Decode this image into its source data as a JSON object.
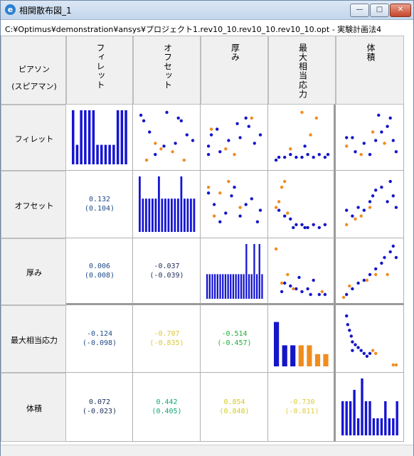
{
  "window": {
    "title": "相関散布図_1",
    "icon": "optimus-app-icon"
  },
  "controls": {
    "minimize": "—",
    "maximize": "□",
    "close": "✕"
  },
  "path": "C:¥Optimus¥demonstration¥ansys¥プロジェクト1.rev10_10.rev10_10.rev10_10.opt - 実験計画法4",
  "corner": {
    "line1": "ピアソン",
    "line2": "(スピアマン)"
  },
  "variables": [
    "フィレット",
    "オフセット",
    "厚み",
    "最大相当応力",
    "体積"
  ],
  "colors": {
    "feasible": "#1515c8",
    "infeasible": "#f08c1e",
    "bar": "#1515d2"
  },
  "correlations": [
    {
      "row": 1,
      "col": 0,
      "pearson": "0.132",
      "spearman": "(0.104)",
      "color": "#1f4a86"
    },
    {
      "row": 2,
      "col": 0,
      "pearson": "0.006",
      "spearman": "(0.008)",
      "color": "#1f4a86"
    },
    {
      "row": 2,
      "col": 1,
      "pearson": "-0.037",
      "spearman": "(-0.039)",
      "color": "#1f2f5a"
    },
    {
      "row": 3,
      "col": 0,
      "pearson": "-0.124",
      "spearman": "(-0.098)",
      "color": "#1f4a86"
    },
    {
      "row": 3,
      "col": 1,
      "pearson": "-0.707",
      "spearman": "(-0.835)",
      "color": "#d9c93e"
    },
    {
      "row": 3,
      "col": 2,
      "pearson": "-0.514",
      "spearman": "(-0.457)",
      "color": "#1fae3a"
    },
    {
      "row": 4,
      "col": 0,
      "pearson": "0.072",
      "spearman": "(-0.023)",
      "color": "#1f2f5a"
    },
    {
      "row": 4,
      "col": 1,
      "pearson": "0.442",
      "spearman": "(0.405)",
      "color": "#12a97a"
    },
    {
      "row": 4,
      "col": 2,
      "pearson": "0.854",
      "spearman": "(0.848)",
      "color": "#d4cc20"
    },
    {
      "row": 4,
      "col": 3,
      "pearson": "-0.730",
      "spearman": "(-0.811)",
      "color": "#dccc40"
    }
  ],
  "chart_data": [
    {
      "type": "bar",
      "name_row": 0,
      "series": [
        {
          "values": [
            1,
            0.36,
            1,
            1,
            1,
            1,
            0.36,
            0.36,
            0.36,
            0.36,
            0.36,
            1,
            1,
            1
          ]
        }
      ]
    },
    {
      "type": "bar",
      "name_row": 1,
      "series": [
        {
          "values": [
            1,
            0.6,
            0.6,
            0.6,
            0.6,
            0.6,
            1,
            0.6,
            0.6,
            0.6,
            0.6,
            0.6,
            0.6,
            1,
            0.6,
            0.6,
            0.6,
            0.6
          ]
        }
      ]
    },
    {
      "type": "bar",
      "name_row": 2,
      "series": [
        {
          "values": [
            0.45,
            0.45,
            0.45,
            0.45,
            0.45,
            0.45,
            0.45,
            0.45,
            0.45,
            0.45,
            0.45,
            0.45,
            0.45,
            0.45,
            0.45,
            1,
            0.45,
            0.45,
            1,
            0.45,
            1,
            0.45
          ]
        }
      ]
    },
    {
      "type": "bar",
      "name_row": 3,
      "series": [
        {
          "values": [
            0.8,
            0.38,
            0.38,
            0.38,
            0.38,
            0.22,
            0.22
          ],
          "color_keys": [
            "feasible",
            "feasible",
            "feasible",
            "infeasible",
            "infeasible",
            "infeasible",
            "infeasible"
          ]
        }
      ]
    },
    {
      "type": "bar",
      "name_row": 4,
      "series": [
        {
          "values": [
            0.6,
            0.6,
            0.6,
            0.8,
            0.3,
            1,
            0.6,
            0.6,
            0.3,
            0.3,
            0.3,
            0.6,
            0.3,
            0.3,
            0.6
          ]
        }
      ]
    },
    {
      "type": "scatter",
      "row": 0,
      "col": 1,
      "points": [
        [
          0.05,
          0.1,
          "f"
        ],
        [
          0.1,
          0.2,
          "f"
        ],
        [
          0.2,
          0.4,
          "f"
        ],
        [
          0.5,
          0.05,
          "f"
        ],
        [
          0.7,
          0.15,
          "f"
        ],
        [
          0.75,
          0.2,
          "f"
        ],
        [
          0.85,
          0.45,
          "f"
        ],
        [
          0.95,
          0.55,
          "f"
        ],
        [
          0.65,
          0.6,
          "f"
        ],
        [
          0.45,
          0.65,
          "f"
        ],
        [
          0.3,
          0.8,
          "f"
        ],
        [
          0.3,
          0.6,
          "i"
        ],
        [
          0.4,
          0.7,
          "i"
        ],
        [
          0.6,
          0.75,
          "i"
        ],
        [
          0.15,
          0.9,
          "i"
        ],
        [
          0.8,
          0.9,
          "i"
        ]
      ]
    },
    {
      "type": "scatter",
      "row": 0,
      "col": 2,
      "points": [
        [
          0.05,
          0.65,
          "f"
        ],
        [
          0.1,
          0.45,
          "f"
        ],
        [
          0.2,
          0.35,
          "f"
        ],
        [
          0.25,
          0.75,
          "f"
        ],
        [
          0.4,
          0.55,
          "f"
        ],
        [
          0.55,
          0.25,
          "f"
        ],
        [
          0.7,
          0.15,
          "f"
        ],
        [
          0.75,
          0.3,
          "f"
        ],
        [
          0.85,
          0.6,
          "f"
        ],
        [
          0.95,
          0.45,
          "f"
        ],
        [
          0.6,
          0.5,
          "f"
        ],
        [
          0.1,
          0.35,
          "i"
        ],
        [
          0.35,
          0.7,
          "i"
        ],
        [
          0.5,
          0.8,
          "i"
        ],
        [
          0.8,
          0.15,
          "i"
        ],
        [
          0.05,
          0.8,
          "f"
        ]
      ]
    },
    {
      "type": "scatter",
      "row": 0,
      "col": 3,
      "points": [
        [
          0.1,
          0.85,
          "f"
        ],
        [
          0.2,
          0.85,
          "f"
        ],
        [
          0.3,
          0.8,
          "f"
        ],
        [
          0.4,
          0.85,
          "f"
        ],
        [
          0.5,
          0.85,
          "f"
        ],
        [
          0.6,
          0.8,
          "f"
        ],
        [
          0.7,
          0.85,
          "f"
        ],
        [
          0.8,
          0.8,
          "f"
        ],
        [
          0.9,
          0.85,
          "f"
        ],
        [
          0.55,
          0.65,
          "f"
        ],
        [
          0.95,
          0.8,
          "f"
        ],
        [
          0.3,
          0.7,
          "i"
        ],
        [
          0.5,
          0.05,
          "i"
        ],
        [
          0.65,
          0.45,
          "i"
        ],
        [
          0.75,
          0.15,
          "i"
        ],
        [
          0.05,
          0.9,
          "f"
        ]
      ]
    },
    {
      "type": "scatter",
      "row": 0,
      "col": 4,
      "points": [
        [
          0.1,
          0.5,
          "f"
        ],
        [
          0.2,
          0.5,
          "f"
        ],
        [
          0.25,
          0.75,
          "f"
        ],
        [
          0.4,
          0.6,
          "f"
        ],
        [
          0.5,
          0.8,
          "f"
        ],
        [
          0.6,
          0.55,
          "f"
        ],
        [
          0.7,
          0.4,
          "f"
        ],
        [
          0.8,
          0.3,
          "f"
        ],
        [
          0.9,
          0.55,
          "f"
        ],
        [
          0.95,
          0.75,
          "f"
        ],
        [
          0.65,
          0.1,
          "f"
        ],
        [
          0.85,
          0.15,
          "f"
        ],
        [
          0.1,
          0.65,
          "i"
        ],
        [
          0.35,
          0.8,
          "i"
        ],
        [
          0.55,
          0.4,
          "i"
        ],
        [
          0.75,
          0.6,
          "i"
        ]
      ]
    },
    {
      "type": "scatter",
      "row": 1,
      "col": 2,
      "points": [
        [
          0.05,
          0.3,
          "f"
        ],
        [
          0.15,
          0.5,
          "f"
        ],
        [
          0.25,
          0.8,
          "f"
        ],
        [
          0.35,
          0.65,
          "f"
        ],
        [
          0.45,
          0.35,
          "f"
        ],
        [
          0.5,
          0.2,
          "f"
        ],
        [
          0.6,
          0.7,
          "f"
        ],
        [
          0.7,
          0.5,
          "f"
        ],
        [
          0.8,
          0.4,
          "f"
        ],
        [
          0.9,
          0.8,
          "f"
        ],
        [
          0.95,
          0.6,
          "f"
        ],
        [
          0.05,
          0.2,
          "i"
        ],
        [
          0.15,
          0.7,
          "i"
        ],
        [
          0.25,
          0.3,
          "i"
        ],
        [
          0.4,
          0.1,
          "i"
        ],
        [
          0.6,
          0.55,
          "i"
        ]
      ]
    },
    {
      "type": "scatter",
      "row": 1,
      "col": 3,
      "points": [
        [
          0.1,
          0.6,
          "f"
        ],
        [
          0.2,
          0.7,
          "f"
        ],
        [
          0.3,
          0.75,
          "f"
        ],
        [
          0.4,
          0.85,
          "f"
        ],
        [
          0.5,
          0.85,
          "f"
        ],
        [
          0.6,
          0.9,
          "f"
        ],
        [
          0.7,
          0.85,
          "f"
        ],
        [
          0.8,
          0.9,
          "f"
        ],
        [
          0.9,
          0.85,
          "f"
        ],
        [
          0.35,
          0.9,
          "f"
        ],
        [
          0.55,
          0.9,
          "f"
        ],
        [
          0.05,
          0.55,
          "i"
        ],
        [
          0.15,
          0.2,
          "i"
        ],
        [
          0.2,
          0.1,
          "i"
        ],
        [
          0.25,
          0.65,
          "i"
        ],
        [
          0.1,
          0.45,
          "i"
        ]
      ]
    },
    {
      "type": "scatter",
      "row": 1,
      "col": 4,
      "points": [
        [
          0.1,
          0.6,
          "f"
        ],
        [
          0.2,
          0.7,
          "f"
        ],
        [
          0.3,
          0.55,
          "f"
        ],
        [
          0.4,
          0.6,
          "f"
        ],
        [
          0.5,
          0.45,
          "f"
        ],
        [
          0.55,
          0.35,
          "f"
        ],
        [
          0.6,
          0.25,
          "f"
        ],
        [
          0.7,
          0.2,
          "f"
        ],
        [
          0.8,
          0.45,
          "f"
        ],
        [
          0.85,
          0.1,
          "f"
        ],
        [
          0.9,
          0.35,
          "f"
        ],
        [
          0.95,
          0.55,
          "f"
        ],
        [
          0.1,
          0.85,
          "i"
        ],
        [
          0.25,
          0.75,
          "i"
        ],
        [
          0.35,
          0.7,
          "i"
        ],
        [
          0.5,
          0.55,
          "i"
        ]
      ]
    },
    {
      "type": "scatter",
      "row": 2,
      "col": 3,
      "points": [
        [
          0.2,
          0.7,
          "f"
        ],
        [
          0.3,
          0.75,
          "f"
        ],
        [
          0.4,
          0.8,
          "f"
        ],
        [
          0.5,
          0.85,
          "f"
        ],
        [
          0.6,
          0.8,
          "f"
        ],
        [
          0.7,
          0.65,
          "f"
        ],
        [
          0.8,
          0.9,
          "f"
        ],
        [
          0.9,
          0.9,
          "f"
        ],
        [
          0.15,
          0.85,
          "f"
        ],
        [
          0.45,
          0.6,
          "f"
        ],
        [
          0.65,
          0.9,
          "f"
        ],
        [
          0.05,
          0.1,
          "i"
        ],
        [
          0.15,
          0.7,
          "i"
        ],
        [
          0.25,
          0.55,
          "i"
        ],
        [
          0.35,
          0.8,
          "i"
        ],
        [
          0.85,
          0.85,
          "i"
        ]
      ]
    },
    {
      "type": "scatter",
      "row": 2,
      "col": 4,
      "points": [
        [
          0.1,
          0.9,
          "f"
        ],
        [
          0.2,
          0.8,
          "f"
        ],
        [
          0.3,
          0.7,
          "f"
        ],
        [
          0.4,
          0.65,
          "f"
        ],
        [
          0.5,
          0.55,
          "f"
        ],
        [
          0.6,
          0.45,
          "f"
        ],
        [
          0.7,
          0.35,
          "f"
        ],
        [
          0.75,
          0.25,
          "f"
        ],
        [
          0.85,
          0.15,
          "f"
        ],
        [
          0.9,
          0.05,
          "f"
        ],
        [
          0.95,
          0.25,
          "f"
        ],
        [
          0.05,
          0.95,
          "i"
        ],
        [
          0.15,
          0.75,
          "i"
        ],
        [
          0.45,
          0.65,
          "i"
        ],
        [
          0.6,
          0.55,
          "i"
        ],
        [
          0.8,
          0.55,
          "i"
        ]
      ]
    },
    {
      "type": "scatter",
      "row": 3,
      "col": 4,
      "points": [
        [
          0.1,
          0.1,
          "f"
        ],
        [
          0.12,
          0.25,
          "f"
        ],
        [
          0.15,
          0.35,
          "f"
        ],
        [
          0.18,
          0.45,
          "f"
        ],
        [
          0.2,
          0.55,
          "f"
        ],
        [
          0.25,
          0.6,
          "f"
        ],
        [
          0.3,
          0.65,
          "f"
        ],
        [
          0.35,
          0.7,
          "f"
        ],
        [
          0.2,
          0.7,
          "f"
        ],
        [
          0.4,
          0.75,
          "f"
        ],
        [
          0.45,
          0.8,
          "f"
        ],
        [
          0.5,
          0.75,
          "f"
        ],
        [
          0.55,
          0.7,
          "i"
        ],
        [
          0.6,
          0.75,
          "i"
        ],
        [
          0.9,
          0.95,
          "i"
        ],
        [
          0.95,
          0.95,
          "i"
        ]
      ]
    }
  ]
}
